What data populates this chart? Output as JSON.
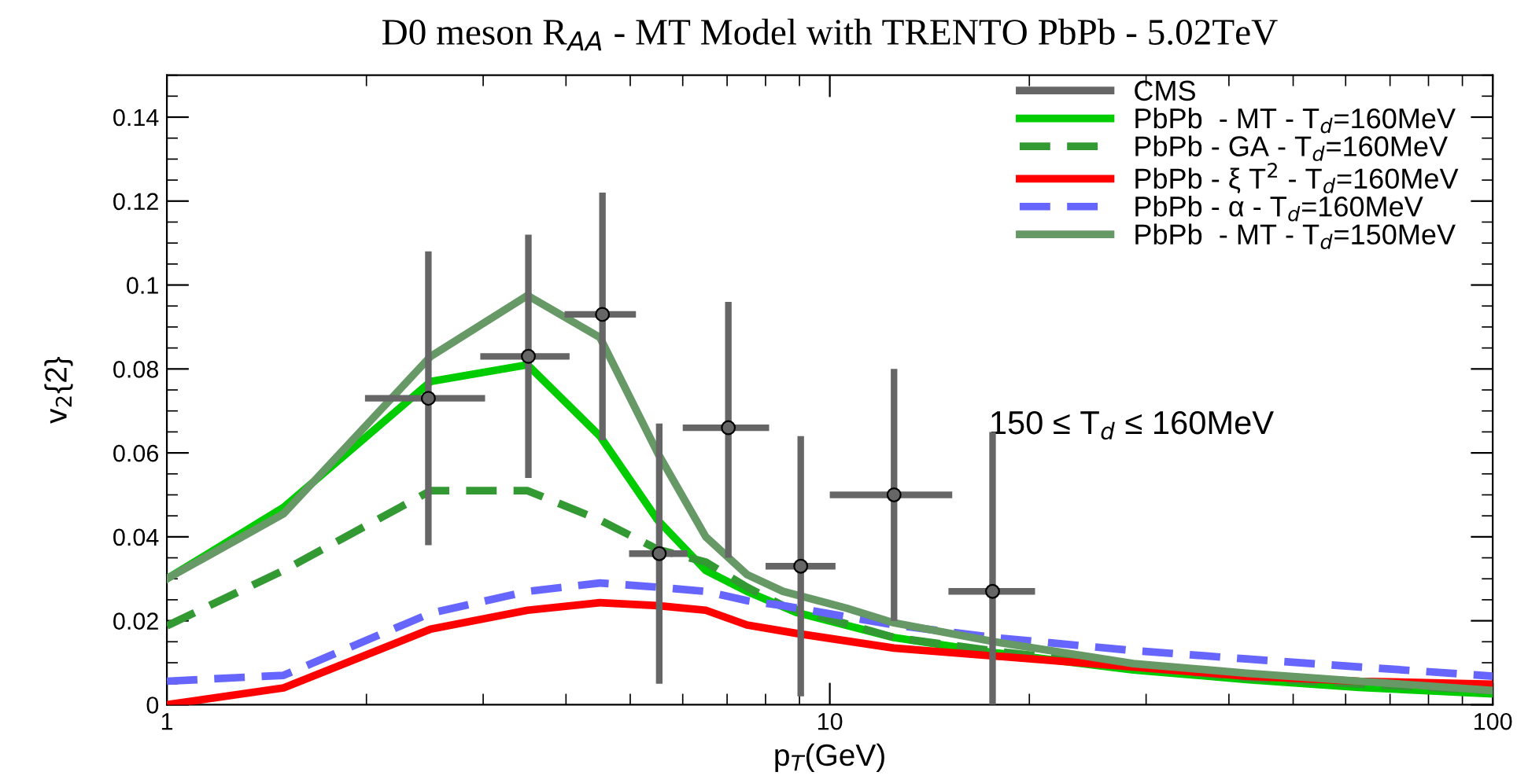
{
  "chart_data": {
    "type": "line",
    "title": "D0 meson R$_{AA}$ - MT Model with TRENTO PbPb - 5.02TeV",
    "xlabel": "p$_{T}$(GeV)",
    "ylabel": "v$_{2}${2}",
    "annotations": [
      "150 ≤ T$_{d}$ ≤ 160MeV"
    ],
    "log": "x",
    "xlim": [
      1,
      100
    ],
    "xticks": [
      1,
      10,
      100
    ],
    "ylim": [
      0,
      0.15
    ],
    "yticks": [
      0,
      0.02,
      0.04,
      0.06,
      0.08,
      0.1,
      0.12,
      0.14
    ],
    "grid": false,
    "legend": "top right",
    "marker": "none",
    "series": [
      {
        "name": "CMS",
        "type": "scatter",
        "marker": "circle",
        "color": "#666666",
        "x": [
          2.48,
          3.51,
          4.54,
          5.53,
          7.03,
          9.04,
          12.5,
          17.6
        ],
        "values": [
          0.073,
          0.083,
          0.093,
          0.036,
          0.066,
          0.033,
          0.05,
          0.027
        ],
        "errors": [
          [
            0.038,
            0.108
          ],
          [
            0.054,
            0.112
          ],
          [
            0.063,
            0.122
          ],
          [
            0.005,
            0.067
          ],
          [
            0.035,
            0.096
          ],
          [
            0.002,
            0.064
          ],
          [
            0.02,
            0.08
          ],
          [
            0.0,
            0.065
          ]
        ],
        "xerrors": [
          [
            1.99,
            3.02
          ],
          [
            2.97,
            4.05
          ],
          [
            3.98,
            5.1
          ],
          [
            4.98,
            6.1
          ],
          [
            6.0,
            8.1
          ],
          [
            8.0,
            10.2
          ],
          [
            10.0,
            15.3
          ],
          [
            15.1,
            20.4
          ]
        ]
      },
      {
        "name": "PbPb  - MT - T$_{d}$=160MeV",
        "line_style": "solid",
        "color": "#00cc00",
        "x": [
          1,
          1.5,
          2.5,
          3.5,
          4.5,
          5.5,
          6.5,
          7.5,
          8.9,
          12.5,
          17.7,
          28.7,
          42.5,
          62.9,
          100
        ],
        "values": [
          0.03,
          0.047,
          0.077,
          0.081,
          0.064,
          0.044,
          0.032,
          0.027,
          0.022,
          0.016,
          0.0124,
          0.0083,
          0.006,
          0.0041,
          0.0026
        ]
      },
      {
        "name": "PbPb - GA - T$_{d}$=160MeV",
        "line_style": "dashed",
        "color": "#339933",
        "x": [
          1,
          1.5,
          2.5,
          3.5,
          4.5,
          5.5,
          6.5,
          7.5,
          8.5,
          12.5,
          17.7,
          28.7,
          42.5,
          62.9,
          100
        ],
        "values": [
          0.0188,
          0.032,
          0.051,
          0.051,
          0.044,
          0.037,
          0.034,
          0.028,
          0.0236,
          0.016,
          0.0128,
          0.009,
          0.0064,
          0.0049,
          0.0034
        ]
      },
      {
        "name": "PbPb - ξ T$^{2}$ - T$_{d}$=160MeV",
        "line_style": "solid",
        "color": "#ff0000",
        "x": [
          1,
          1.5,
          2.5,
          3.5,
          4.5,
          5.5,
          6.5,
          7.5,
          8.9,
          12.5,
          17.7,
          28.7,
          42.5,
          62.9,
          100
        ],
        "values": [
          0.0,
          0.004,
          0.018,
          0.0225,
          0.0243,
          0.0236,
          0.0225,
          0.019,
          0.017,
          0.0135,
          0.0116,
          0.009,
          0.0068,
          0.0056,
          0.0049
        ]
      },
      {
        "name": "PbPb - α - T$_{d}$=160MeV",
        "line_style": "dashed",
        "color": "#6666ff",
        "x": [
          1,
          1.5,
          2.5,
          3.5,
          4.5,
          5.5,
          6.5,
          7.5,
          8.5,
          12.5,
          17.7,
          28.7,
          42.5,
          62.9,
          100
        ],
        "values": [
          0.0056,
          0.007,
          0.0218,
          0.027,
          0.029,
          0.028,
          0.027,
          0.0248,
          0.0236,
          0.019,
          0.016,
          0.0129,
          0.0109,
          0.009,
          0.0068
        ]
      },
      {
        "name": "PbPb  - MT - T$_{d}$=150MeV",
        "line_style": "solid",
        "color": "#669966",
        "x": [
          1,
          1.5,
          2.5,
          3.5,
          4.5,
          5.5,
          6.5,
          7.5,
          8.5,
          9.5,
          10.6,
          12.5,
          17.7,
          28.7,
          42.5,
          62.9,
          100
        ],
        "values": [
          0.03,
          0.0455,
          0.083,
          0.0975,
          0.0875,
          0.06,
          0.04,
          0.031,
          0.027,
          0.025,
          0.023,
          0.0195,
          0.015,
          0.0098,
          0.0075,
          0.0056,
          0.0034
        ]
      }
    ]
  }
}
